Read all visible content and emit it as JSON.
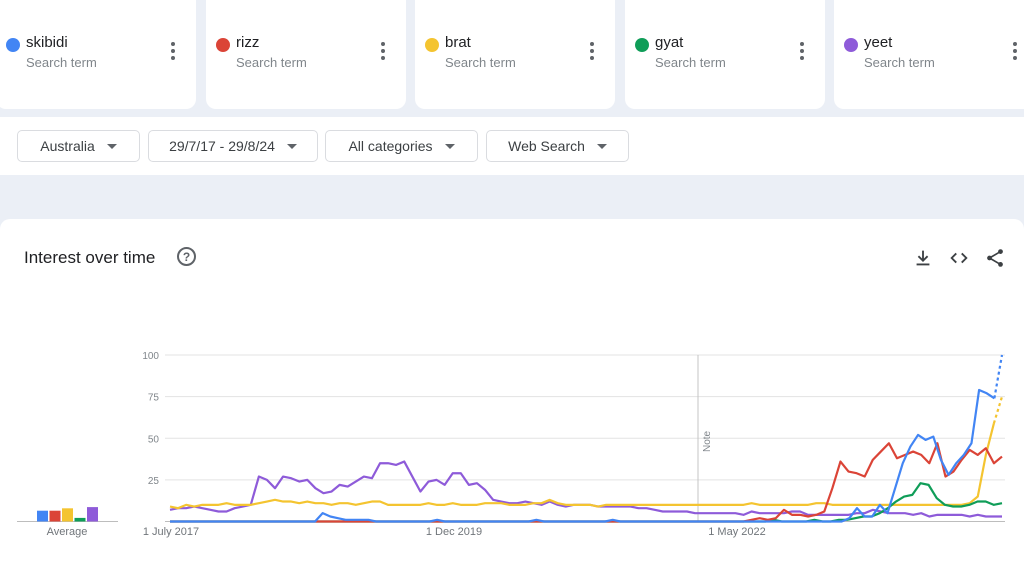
{
  "terms": [
    {
      "name": "skibidi",
      "subtitle": "Search term",
      "color": "#4285f4"
    },
    {
      "name": "rizz",
      "subtitle": "Search term",
      "color": "#db4437"
    },
    {
      "name": "brat",
      "subtitle": "Search term",
      "color": "#f4c430"
    },
    {
      "name": "gyat",
      "subtitle": "Search term",
      "color": "#0f9d58"
    },
    {
      "name": "yeet",
      "subtitle": "Search term",
      "color": "#8e5bd9"
    }
  ],
  "filters": {
    "region": "Australia",
    "date_range": "29/7/17 - 29/8/24",
    "category": "All categories",
    "search_type": "Web Search"
  },
  "panel": {
    "title": "Interest over time",
    "help_icon": "help-circle-icon",
    "tools": [
      "download-icon",
      "embed-code-icon",
      "share-icon"
    ]
  },
  "chart_data": {
    "type": "line",
    "ylim": [
      0,
      100
    ],
    "y_ticks": [
      "100",
      "75",
      "50",
      "25"
    ],
    "x_tick_labels": [
      "1 July 2017",
      "1 Dec 2019",
      "1 May 2022"
    ],
    "average_label": "Average",
    "annotation": "Note",
    "averages": [
      {
        "name": "skibidi",
        "value": 9
      },
      {
        "name": "rizz",
        "value": 9
      },
      {
        "name": "brat",
        "value": 11
      },
      {
        "name": "gyat",
        "value": 3
      },
      {
        "name": "yeet",
        "value": 12
      }
    ],
    "series": [
      {
        "name": "skibidi",
        "values": [
          0,
          0,
          0,
          0,
          0,
          0,
          0,
          0,
          0,
          0,
          0,
          0,
          0,
          0,
          0,
          0,
          0,
          0,
          0,
          0,
          5,
          3,
          2,
          1,
          1,
          1,
          1,
          0,
          0,
          0,
          0,
          0,
          0,
          0,
          0,
          1,
          0,
          0,
          0,
          0,
          0,
          0,
          0,
          0,
          0,
          0,
          0,
          0,
          1,
          0,
          0,
          0,
          0,
          0,
          0,
          0,
          0,
          0,
          1,
          0,
          0,
          0,
          0,
          0,
          0,
          0,
          0,
          0,
          0,
          0,
          0,
          0,
          0,
          0,
          0,
          0,
          0,
          0,
          0,
          0,
          0,
          0,
          0,
          0,
          0,
          0,
          0,
          0,
          0,
          2,
          8,
          3,
          3,
          10,
          5,
          20,
          35,
          45,
          52,
          49,
          51,
          37,
          28,
          35,
          40,
          47,
          79,
          77,
          74,
          100
        ]
      },
      {
        "name": "rizz",
        "values": [
          0,
          0,
          0,
          0,
          0,
          0,
          0,
          0,
          0,
          0,
          0,
          0,
          0,
          0,
          0,
          0,
          0,
          0,
          0,
          0,
          0,
          0,
          0,
          0,
          0,
          0,
          0,
          0,
          0,
          0,
          0,
          0,
          0,
          0,
          0,
          0,
          0,
          0,
          0,
          0,
          0,
          0,
          0,
          0,
          0,
          0,
          0,
          0,
          0,
          0,
          0,
          0,
          0,
          0,
          0,
          0,
          0,
          0,
          0,
          0,
          0,
          0,
          0,
          0,
          0,
          0,
          0,
          0,
          0,
          0,
          0,
          0,
          1,
          2,
          1,
          2,
          7,
          4,
          4,
          3,
          4,
          6,
          20,
          36,
          30,
          29,
          27,
          37,
          42,
          47,
          38,
          40,
          42,
          40,
          35,
          47,
          27,
          30,
          37,
          43,
          40,
          44,
          35,
          39
        ]
      },
      {
        "name": "brat",
        "values": [
          9,
          8,
          10,
          9,
          10,
          10,
          10,
          11,
          10,
          10,
          10,
          11,
          12,
          13,
          12,
          12,
          11,
          12,
          11,
          11,
          10,
          11,
          11,
          10,
          11,
          12,
          12,
          10,
          10,
          10,
          10,
          10,
          11,
          10,
          10,
          11,
          10,
          10,
          10,
          11,
          11,
          11,
          10,
          10,
          10,
          11,
          11,
          13,
          11,
          10,
          10,
          10,
          10,
          9,
          10,
          10,
          10,
          10,
          10,
          10,
          10,
          10,
          10,
          10,
          10,
          10,
          10,
          10,
          10,
          10,
          10,
          10,
          11,
          10,
          10,
          10,
          10,
          10,
          10,
          10,
          11,
          11,
          10,
          10,
          10,
          10,
          10,
          10,
          10,
          10,
          10,
          10,
          10,
          10,
          10,
          10,
          10,
          10,
          10,
          11,
          15,
          40,
          59,
          75
        ]
      },
      {
        "name": "gyat",
        "values": [
          0,
          0,
          0,
          0,
          0,
          0,
          0,
          0,
          0,
          0,
          0,
          0,
          0,
          0,
          0,
          0,
          0,
          0,
          0,
          0,
          0,
          0,
          0,
          0,
          0,
          0,
          0,
          0,
          0,
          0,
          0,
          0,
          0,
          0,
          0,
          0,
          0,
          0,
          0,
          0,
          0,
          0,
          0,
          0,
          0,
          0,
          0,
          0,
          0,
          0,
          0,
          0,
          0,
          0,
          0,
          0,
          0,
          0,
          0,
          0,
          0,
          0,
          0,
          0,
          0,
          0,
          0,
          0,
          0,
          0,
          0,
          0,
          0,
          0,
          1,
          0,
          0,
          0,
          0,
          1,
          0,
          0,
          1,
          1,
          2,
          3,
          3,
          5,
          8,
          12,
          15,
          16,
          23,
          22,
          14,
          10,
          9,
          9,
          10,
          12,
          12,
          10,
          11
        ]
      },
      {
        "name": "yeet",
        "values": [
          7,
          8,
          8,
          9,
          8,
          7,
          6,
          6,
          8,
          9,
          10,
          27,
          25,
          20,
          27,
          26,
          24,
          25,
          20,
          17,
          18,
          22,
          21,
          24,
          27,
          26,
          35,
          35,
          34,
          36,
          27,
          18,
          24,
          25,
          22,
          29,
          29,
          22,
          23,
          19,
          13,
          12,
          11,
          11,
          12,
          11,
          10,
          12,
          10,
          9,
          10,
          10,
          10,
          9,
          9,
          9,
          9,
          9,
          8,
          8,
          7,
          6,
          6,
          6,
          6,
          5,
          5,
          5,
          5,
          5,
          5,
          4,
          6,
          5,
          5,
          5,
          5,
          6,
          6,
          4,
          4,
          4,
          4,
          4,
          4,
          5,
          5,
          7,
          6,
          5,
          5,
          5,
          4,
          5,
          3,
          4,
          4,
          4,
          4,
          3,
          4,
          3,
          3,
          3
        ]
      }
    ]
  }
}
